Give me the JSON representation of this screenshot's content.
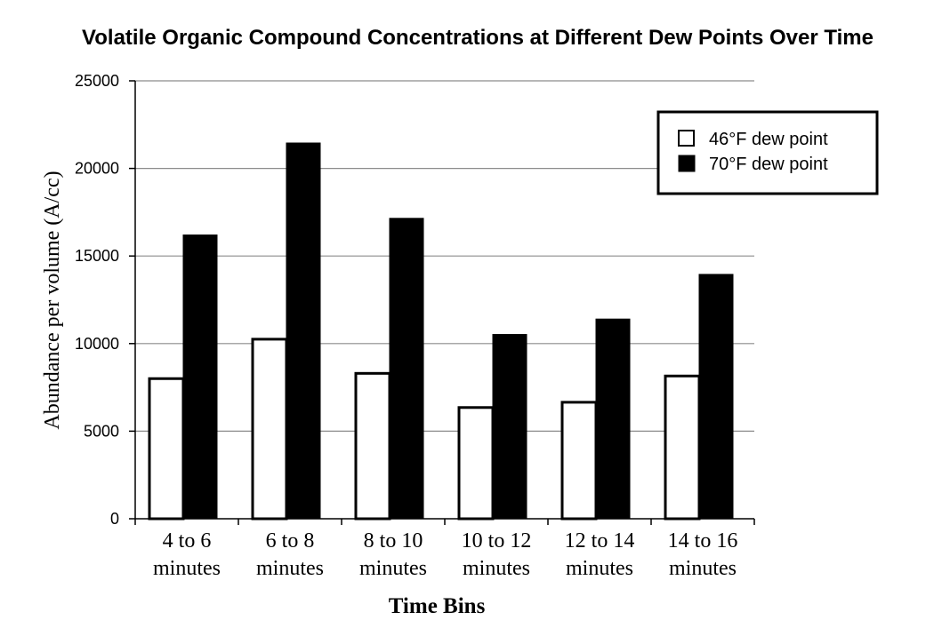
{
  "chart_data": {
    "type": "bar",
    "title": "Volatile Organic Compound Concentrations at Different Dew Points Over Time",
    "xlabel": "Time Bins",
    "ylabel": "Abundance per volume (A/cc)",
    "ylim": [
      0,
      25000
    ],
    "yticks": [
      0,
      5000,
      10000,
      15000,
      20000,
      25000
    ],
    "grid": true,
    "legend_position": "top-right",
    "categories": [
      [
        "4 to 6",
        "minutes"
      ],
      [
        "6 to 8",
        "minutes"
      ],
      [
        "8 to 10",
        "minutes"
      ],
      [
        "10 to 12",
        "minutes"
      ],
      [
        "12 to 14",
        "minutes"
      ],
      [
        "14 to 16",
        "minutes"
      ]
    ],
    "series": [
      {
        "name": "46°F dew point",
        "color": "#ffffff",
        "values": [
          8000,
          10250,
          8300,
          6350,
          6650,
          8150
        ]
      },
      {
        "name": "70°F dew point",
        "color": "#000000",
        "values": [
          16200,
          21450,
          17150,
          10520,
          11400,
          13950
        ]
      }
    ]
  }
}
